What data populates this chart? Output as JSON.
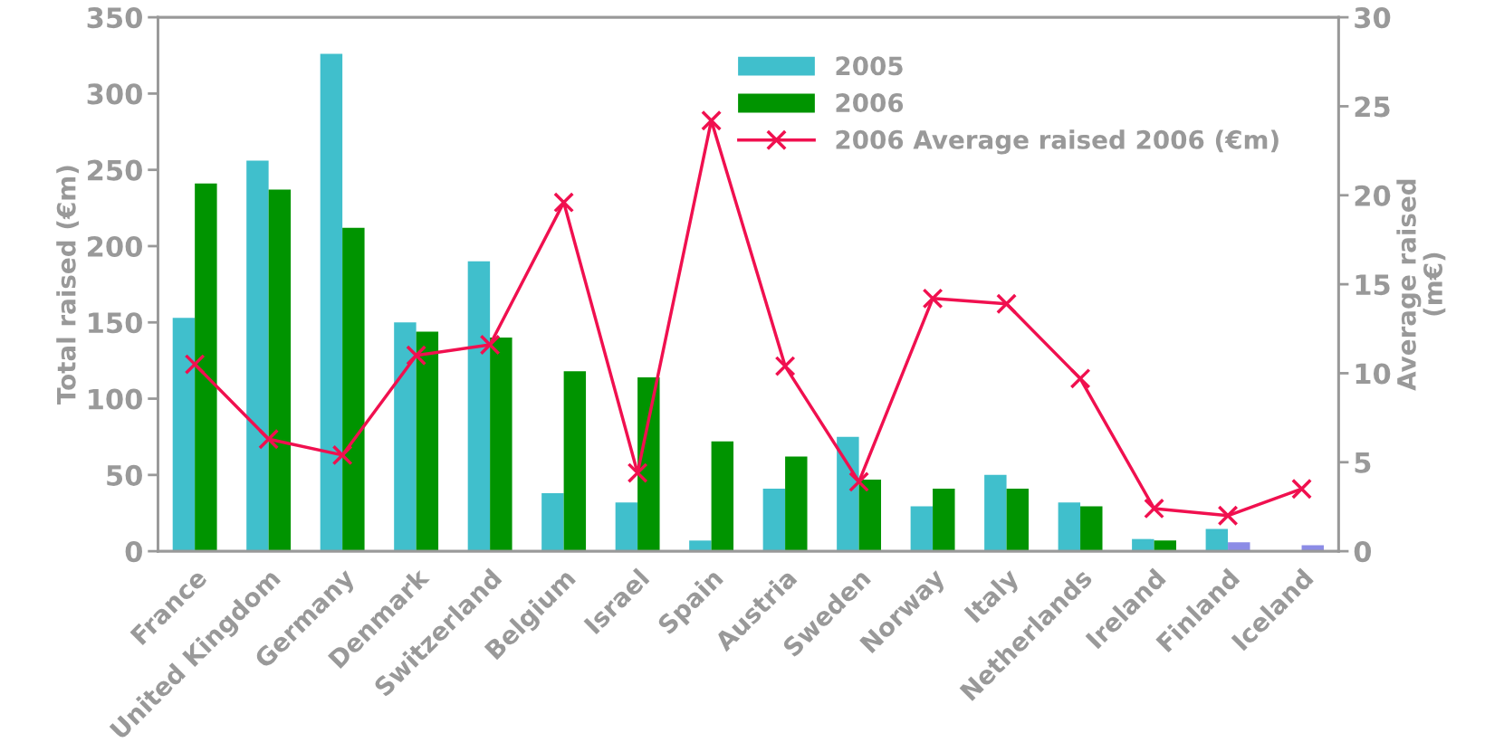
{
  "chart_data": {
    "type": "bar",
    "categories": [
      "France",
      "United Kingdom",
      "Germany",
      "Denmark",
      "Switzerland",
      "Belgium",
      "Israel",
      "Spain",
      "Austria",
      "Sweden",
      "Norway",
      "Italy",
      "Netherlands",
      "Ireland",
      "Finland",
      "Iceland"
    ],
    "series": [
      {
        "name": "2005",
        "color": "#40bfcc",
        "values": [
          153,
          256,
          326,
          150,
          190,
          38,
          32,
          7,
          41,
          75,
          29.5,
          50,
          32,
          8,
          14.6,
          null
        ]
      },
      {
        "name": "2006",
        "color": "#009400",
        "colors": [
          "#009400",
          "#009400",
          "#009400",
          "#009400",
          "#009400",
          "#009400",
          "#009400",
          "#009400",
          "#009400",
          "#009400",
          "#009400",
          "#009400",
          "#009400",
          "#009400",
          "#8c8ce6",
          "#8c8ce6"
        ],
        "values": [
          241,
          237,
          212,
          144,
          140,
          118,
          114,
          72,
          62,
          47,
          41,
          41,
          29.5,
          7,
          5.8,
          4
        ]
      },
      {
        "name": "2006 Average raised 2006 (€m)",
        "type": "line",
        "axis": "y2",
        "color": "#f0104f",
        "marker": "cross",
        "values": [
          10.5,
          6.3,
          5.4,
          11.0,
          11.6,
          19.6,
          4.4,
          24.2,
          10.4,
          3.9,
          14.2,
          13.9,
          9.7,
          2.4,
          2.0,
          3.5
        ]
      }
    ],
    "ylabel": "Total raised (€m)",
    "y2label": "Average raised\n(m€)",
    "ylim": [
      0,
      350
    ],
    "yticks": [
      0,
      50,
      100,
      150,
      200,
      250,
      300,
      350
    ],
    "y2lim": [
      0,
      30
    ],
    "y2ticks": [
      0,
      5,
      10,
      15,
      20,
      25,
      30
    ],
    "grid": false,
    "legend": "top right"
  }
}
